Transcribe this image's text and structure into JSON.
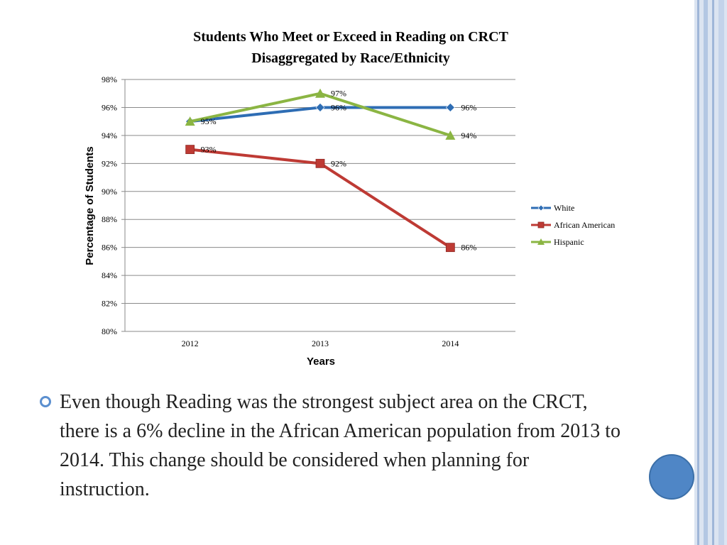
{
  "slide": {
    "bullet_text": "Even though Reading was the strongest subject area on the CRCT, there is a 6% decline in the African American population from 2013 to 2014. This change should be considered when planning for instruction.",
    "accent_color": "#4f86c6"
  },
  "chart_data": {
    "type": "line",
    "title": "Students Who Meet or Exceed in Reading on CRCT",
    "subtitle": "Disaggregated by Race/Ethnicity",
    "xlabel": "Years",
    "ylabel": "Percentage of Students",
    "categories": [
      "2012",
      "2013",
      "2014"
    ],
    "ylim": [
      80,
      98
    ],
    "yticks": [
      80,
      82,
      84,
      86,
      88,
      90,
      92,
      94,
      96,
      98
    ],
    "ytick_labels": [
      "80%",
      "82%",
      "84%",
      "86%",
      "88%",
      "90%",
      "92%",
      "94%",
      "96%",
      "98%"
    ],
    "grid": true,
    "legend_position": "right",
    "series": [
      {
        "name": "White",
        "values": [
          95,
          96,
          96
        ],
        "labels": [
          "",
          "96%",
          "96%"
        ],
        "color": "#2e6db4",
        "marker": "diamond"
      },
      {
        "name": "African American",
        "values": [
          93,
          92,
          86
        ],
        "labels": [
          "93%",
          "92%",
          "86%"
        ],
        "color": "#be3a34",
        "marker": "square"
      },
      {
        "name": "Hispanic",
        "values": [
          95,
          97,
          94
        ],
        "labels": [
          "95%",
          "97%",
          "94%"
        ],
        "color": "#8bb543",
        "marker": "triangle"
      }
    ]
  }
}
